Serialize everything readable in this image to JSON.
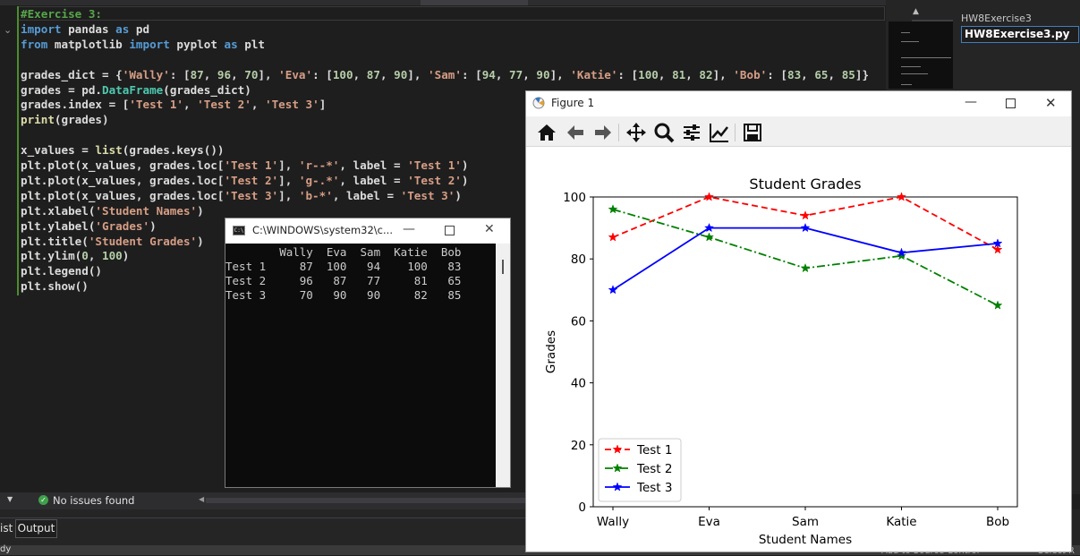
{
  "editor": {
    "lines": [
      "#Exercise 3:",
      "import pandas as pd",
      "from matplotlib import pyplot as plt",
      "",
      "grades_dict = {'Wally': [87, 96, 70], 'Eva': [100, 87, 90], 'Sam': [94, 77, 90], 'Katie': [100, 81, 82], 'Bob': [83, 65, 85]}",
      "grades = pd.DataFrame(grades_dict)",
      "grades.index = ['Test 1', 'Test 2', 'Test 3']",
      "print(grades)",
      "",
      "x_values = list(grades.keys())",
      "plt.plot(x_values, grades.loc['Test 1'], 'r--*', label = 'Test 1')",
      "plt.plot(x_values, grades.loc['Test 2'], 'g-.*', label = 'Test 2')",
      "plt.plot(x_values, grades.loc['Test 3'], 'b-*', label = 'Test 3')",
      "plt.xlabel('Student Names')",
      "plt.ylabel('Grades')",
      "plt.title('Student Grades')",
      "plt.ylim(0, 100)",
      "plt.legend()",
      "plt.show()"
    ]
  },
  "solution_explorer": {
    "project": "HW8Exercise3",
    "file": "HW8Exercise3.py"
  },
  "status": {
    "issues": "No issues found",
    "tab_output": "Output",
    "tab_list": "ist",
    "ready": "dy",
    "add_source_control": "Add to Source Control",
    "select": "Select R"
  },
  "console": {
    "title": "C:\\WINDOWS\\system32\\c...",
    "header": "        Wally  Eva  Sam  Katie  Bob",
    "rows": [
      "Test 1     87  100   94    100   83",
      "Test 2     96   87   77     81   65",
      "Test 3     70   90   90     82   85"
    ]
  },
  "figure": {
    "title": "Figure 1",
    "toolbar": [
      "home-icon",
      "back-icon",
      "forward-icon",
      "pan-icon",
      "zoom-icon",
      "configure-subplots-icon",
      "edit-axis-icon",
      "save-icon"
    ]
  },
  "chart_data": {
    "type": "line",
    "title": "Student Grades",
    "xlabel": "Student Names",
    "ylabel": "Grades",
    "categories": [
      "Wally",
      "Eva",
      "Sam",
      "Katie",
      "Bob"
    ],
    "ylim": [
      0,
      100
    ],
    "yticks": [
      0,
      20,
      40,
      60,
      80,
      100
    ],
    "legend_position": "lower-left",
    "grid": false,
    "series": [
      {
        "name": "Test 1",
        "values": [
          87,
          100,
          94,
          100,
          83
        ],
        "color": "#ff0000",
        "style": "dashed"
      },
      {
        "name": "Test 2",
        "values": [
          96,
          87,
          77,
          81,
          65
        ],
        "color": "#008000",
        "style": "dashdot"
      },
      {
        "name": "Test 3",
        "values": [
          70,
          90,
          90,
          82,
          85
        ],
        "color": "#0000ff",
        "style": "solid"
      }
    ]
  }
}
